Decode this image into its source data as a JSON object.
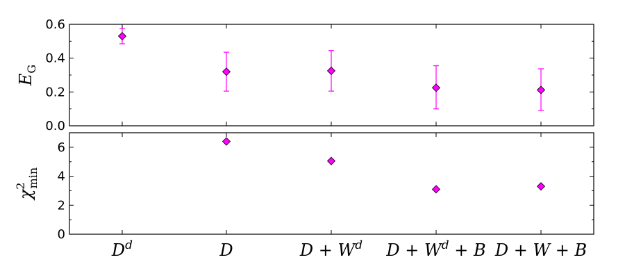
{
  "chart_data": [
    {
      "type": "scatter",
      "categories": [
        "D^d",
        "D",
        "D+W^d",
        "D+W^d+B",
        "D+W+B"
      ],
      "series": [
        {
          "values": [
            0.53,
            0.32,
            0.325,
            0.225,
            0.212
          ],
          "err_low": [
            0.045,
            0.115,
            0.12,
            0.125,
            0.122
          ],
          "err_high": [
            0.045,
            0.115,
            0.12,
            0.13,
            0.125
          ],
          "color": "#ff00ff"
        }
      ],
      "ylabel": "E_G",
      "ylim": [
        0.0,
        0.6
      ],
      "yticks": [
        "0.0",
        "0.2",
        "0.4",
        "0.6"
      ],
      "ytick_values": [
        0.0,
        0.2,
        0.4,
        0.6
      ],
      "marker": "diamond"
    },
    {
      "type": "scatter",
      "categories": [
        "D^d",
        "D",
        "D+W^d",
        "D+W^d+B",
        "D+W+B"
      ],
      "series": [
        {
          "values": [
            null,
            6.4,
            5.05,
            3.1,
            3.3
          ],
          "color": "#ff00ff"
        }
      ],
      "ylabel": "χ²_min",
      "ylim": [
        0,
        7
      ],
      "yticks": [
        "0",
        "2",
        "4",
        "6"
      ],
      "ytick_values": [
        0,
        2,
        4,
        6
      ],
      "marker": "diamond"
    }
  ],
  "xtick_labels": [
    {
      "base": "D",
      "sup": "d",
      "tail": ""
    },
    {
      "base": "D",
      "sup": "",
      "tail": ""
    },
    {
      "base": "D + W",
      "sup": "d",
      "tail": ""
    },
    {
      "base": "D + W",
      "sup": "d",
      "tail": " + B"
    },
    {
      "base": "D + W + B",
      "sup": "",
      "tail": ""
    }
  ],
  "axis_labels": {
    "top": {
      "base": "E",
      "sub": "G"
    },
    "bottom": {
      "base": "χ",
      "sup": "2",
      "sub": "min"
    }
  }
}
